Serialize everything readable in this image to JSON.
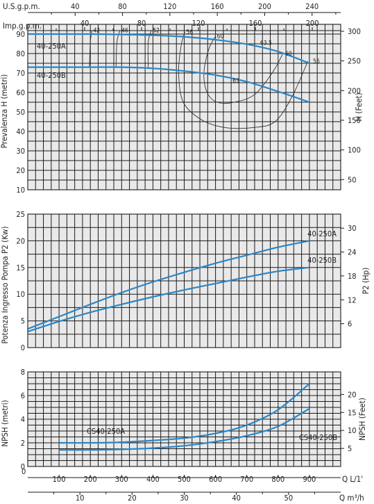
{
  "chart_data": [
    {
      "type": "line",
      "flow_axes": {
        "top1": {
          "label": "U.S.g.p.m.",
          "ticks": [
            40,
            80,
            120,
            160,
            200,
            240
          ]
        },
        "top2": {
          "label": "Imp.g.p.m.",
          "ticks": [
            40,
            80,
            120,
            160,
            200
          ]
        },
        "bottom1": {
          "label": "Q L/1'",
          "ticks": [
            100,
            200,
            300,
            400,
            500,
            600,
            700,
            800,
            900
          ]
        },
        "bottom2": {
          "label": "Q m³/h",
          "ticks": [
            10,
            20,
            30,
            40,
            50
          ]
        },
        "xlim_lpm": [
          0,
          1000
        ]
      },
      "ylabel": "Prevalenza H (metri)",
      "ylabel_right": "H (Feet)",
      "ylim": [
        10,
        95
      ],
      "yticks": [
        10,
        20,
        30,
        40,
        50,
        60,
        70,
        80,
        90
      ],
      "yticks_right": [
        50,
        100,
        150,
        200,
        250,
        300
      ],
      "series": [
        {
          "name": "40-250A",
          "x": [
            0,
            100,
            200,
            300,
            400,
            500,
            600,
            700,
            800,
            900
          ],
          "y": [
            90,
            90,
            90,
            89.8,
            89.4,
            88.6,
            87.1,
            84.8,
            81,
            75
          ]
        },
        {
          "name": "40-250B",
          "x": [
            0,
            100,
            200,
            300,
            400,
            500,
            600,
            700,
            800,
            900
          ],
          "y": [
            73,
            73,
            73,
            73,
            72.4,
            71,
            68.9,
            65.5,
            60.5,
            55
          ]
        }
      ],
      "efficiency_labels": [
        "42",
        "46",
        "52",
        "56",
        "60",
        "63.5",
        "60",
        "56",
        "63"
      ],
      "efficiency_curves": [
        {
          "label": "42",
          "points": [
            [
              205,
              92
            ],
            [
              200,
              86
            ],
            [
              197,
              73
            ]
          ]
        },
        {
          "label": "46",
          "points": [
            [
              295,
              92
            ],
            [
              285,
              86
            ],
            [
              282,
              73
            ]
          ]
        },
        {
          "label": "52",
          "points": [
            [
              395,
              92
            ],
            [
              385,
              86
            ],
            [
              385,
              73
            ]
          ]
        },
        {
          "label": "56",
          "points": [
            [
              502,
              91
            ],
            [
              490,
              84
            ],
            [
              482,
              70
            ],
            [
              497,
              55
            ],
            [
              555,
              46
            ],
            [
              630,
              42
            ],
            [
              720,
              42
            ],
            [
              790,
              45
            ],
            [
              845,
              58
            ],
            [
              895,
              76
            ]
          ]
        },
        {
          "label": "60",
          "points": [
            [
              600,
              89
            ],
            [
              578,
              82
            ],
            [
              563,
              70
            ],
            [
              573,
              60
            ],
            [
              605,
              55
            ],
            [
              660,
              55
            ],
            [
              725,
              59
            ],
            [
              785,
              71
            ],
            [
              815,
              80
            ]
          ]
        },
        {
          "label": "63.5",
          "points": [
            [
              725,
              85
            ],
            [
              738,
              84
            ]
          ]
        },
        {
          "label": "63",
          "points": [
            [
              650,
              66
            ],
            [
              668,
              65
            ]
          ]
        }
      ]
    },
    {
      "type": "line",
      "ylabel": "Potenza Ingresso Pompa P2 (Kw)",
      "ylabel_right": "P2 (Hp)",
      "ylim": [
        0,
        25
      ],
      "yticks": [
        0,
        5,
        10,
        15,
        20,
        25
      ],
      "yticks_right": [
        6,
        12,
        18,
        24,
        30
      ],
      "series": [
        {
          "name": "40-250A",
          "x": [
            0,
            100,
            200,
            300,
            400,
            500,
            600,
            700,
            800,
            900
          ],
          "y": [
            3.5,
            5.8,
            8.1,
            10.3,
            12.3,
            14.1,
            15.8,
            17.3,
            18.8,
            20
          ]
        },
        {
          "name": "40-250B",
          "x": [
            0,
            100,
            200,
            300,
            400,
            500,
            600,
            700,
            800,
            900
          ],
          "y": [
            3,
            4.9,
            6.6,
            8.1,
            9.5,
            10.8,
            12,
            13.2,
            14.3,
            15
          ]
        }
      ]
    },
    {
      "type": "line",
      "ylabel": "NPSH (metri)",
      "ylabel_right": "NPSH (Feet)",
      "ylim": [
        0,
        8
      ],
      "yticks": [
        0,
        2,
        4,
        6,
        8
      ],
      "yticks_right": [
        5,
        10,
        15,
        20
      ],
      "series": [
        {
          "name": "CS40-250A",
          "x": [
            100,
            200,
            300,
            400,
            500,
            600,
            700,
            800,
            900
          ],
          "y": [
            2,
            2,
            2.05,
            2.2,
            2.4,
            2.8,
            3.5,
            4.8,
            7
          ]
        },
        {
          "name": "CS40-250B",
          "x": [
            100,
            200,
            300,
            400,
            500,
            600,
            700,
            800,
            900
          ],
          "y": [
            1.4,
            1.4,
            1.45,
            1.55,
            1.75,
            2.1,
            2.6,
            3.4,
            4.9
          ]
        }
      ]
    }
  ]
}
